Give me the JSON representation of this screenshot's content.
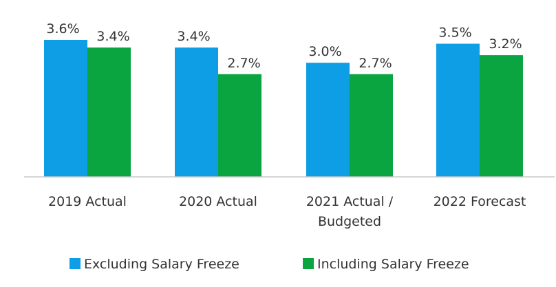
{
  "chart_data": {
    "type": "bar",
    "categories": [
      [
        "2019 Actual"
      ],
      [
        "2020 Actual"
      ],
      [
        "2021 Actual /",
        "Budgeted"
      ],
      [
        "2022 Forecast"
      ]
    ],
    "series": [
      {
        "name": "Excluding Salary Freeze",
        "color": "#0d9ee6",
        "values": [
          3.6,
          3.4,
          3.0,
          3.5
        ],
        "labels": [
          "3.6%",
          "3.4%",
          "3.0%",
          "3.5%"
        ]
      },
      {
        "name": "Including Salary Freeze",
        "color": "#0aa441",
        "values": [
          3.4,
          2.7,
          2.7,
          3.2
        ],
        "labels": [
          "3.4%",
          "2.7%",
          "2.7%",
          "3.2%"
        ]
      }
    ],
    "ylim": [
      0,
      3.6
    ],
    "grid": false,
    "legend_position": "bottom"
  }
}
